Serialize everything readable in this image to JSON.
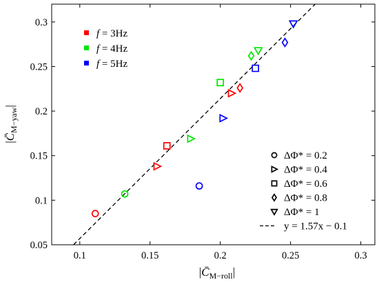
{
  "chart_data": {
    "type": "scatter",
    "xlabel_main": "C̄",
    "xlabel_sub": "M−roll",
    "ylabel_main": "C̄",
    "ylabel_sub": "M−yaw",
    "xlim": [
      0.08,
      0.31
    ],
    "ylim": [
      0.05,
      0.32
    ],
    "x_ticks": [
      0.1,
      0.15,
      0.2,
      0.25,
      0.3
    ],
    "x_tick_labels": [
      "0.1",
      "0.15",
      "0.2",
      "0.25",
      "0.3"
    ],
    "y_ticks": [
      0.05,
      0.1,
      0.15,
      0.2,
      0.25,
      0.3
    ],
    "y_tick_labels": [
      "0.05",
      "0.1",
      "0.15",
      "0.2",
      "0.25",
      "0.3"
    ],
    "grid": false,
    "color_legend": {
      "placement": "top-left",
      "entries": [
        {
          "var": "f",
          "value": " = 3Hz",
          "color": "#ff0000"
        },
        {
          "var": "f",
          "value": " = 4Hz",
          "color": "#00e600"
        },
        {
          "var": "f",
          "value": " = 5Hz",
          "color": "#0000ff"
        }
      ]
    },
    "marker_legend": {
      "placement": "bottom-right",
      "entries": [
        {
          "marker": "circle",
          "label": "ΔΦ* = 0.2"
        },
        {
          "marker": "triangle-right",
          "label": "ΔΦ* = 0.4"
        },
        {
          "marker": "square",
          "label": "ΔΦ* = 0.6"
        },
        {
          "marker": "diamond",
          "label": "ΔΦ* = 0.8"
        },
        {
          "marker": "triangle-down",
          "label": "ΔΦ* = 1"
        },
        {
          "marker": "dashed-line",
          "label": "y = 1.57x − 0.1"
        }
      ]
    },
    "fit_line": {
      "slope": 1.57,
      "intercept": -0.1,
      "style": "dashed",
      "color": "#000000"
    },
    "points": [
      {
        "x": 0.111,
        "y": 0.085,
        "marker": "circle",
        "color": "#ff0000"
      },
      {
        "x": 0.132,
        "y": 0.107,
        "marker": "circle",
        "color": "#00e600"
      },
      {
        "x": 0.185,
        "y": 0.116,
        "marker": "circle",
        "color": "#0000ff"
      },
      {
        "x": 0.155,
        "y": 0.138,
        "marker": "triangle-right",
        "color": "#ff0000"
      },
      {
        "x": 0.179,
        "y": 0.169,
        "marker": "triangle-right",
        "color": "#00e600"
      },
      {
        "x": 0.202,
        "y": 0.192,
        "marker": "triangle-right",
        "color": "#0000ff"
      },
      {
        "x": 0.208,
        "y": 0.22,
        "marker": "triangle-right",
        "color": "#ff0000"
      },
      {
        "x": 0.162,
        "y": 0.161,
        "marker": "square",
        "color": "#ff0000"
      },
      {
        "x": 0.2,
        "y": 0.232,
        "marker": "square",
        "color": "#00e600"
      },
      {
        "x": 0.225,
        "y": 0.248,
        "marker": "square",
        "color": "#0000ff"
      },
      {
        "x": 0.214,
        "y": 0.226,
        "marker": "diamond",
        "color": "#ff0000"
      },
      {
        "x": 0.222,
        "y": 0.262,
        "marker": "diamond",
        "color": "#00e600"
      },
      {
        "x": 0.246,
        "y": 0.277,
        "marker": "diamond",
        "color": "#0000ff"
      },
      {
        "x": 0.227,
        "y": 0.268,
        "marker": "triangle-down",
        "color": "#00e600"
      },
      {
        "x": 0.252,
        "y": 0.298,
        "marker": "triangle-down",
        "color": "#0000ff"
      }
    ]
  }
}
